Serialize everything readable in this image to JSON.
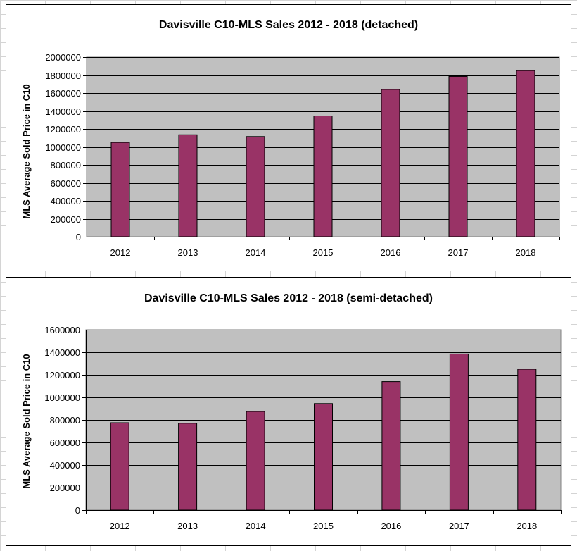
{
  "chart_data": [
    {
      "type": "bar",
      "title": "Davisville C10-MLS Sales 2012 - 2018 (detached)",
      "xlabel": "",
      "ylabel": "MLS Average Sold Price in C10",
      "categories": [
        "2012",
        "2013",
        "2014",
        "2015",
        "2016",
        "2017",
        "2018"
      ],
      "values": [
        1050000,
        1135000,
        1115000,
        1345000,
        1640000,
        1785000,
        1850000
      ],
      "ylim": [
        0,
        2000000
      ],
      "yticks": [
        "0",
        "200000",
        "400000",
        "600000",
        "800000",
        "1000000",
        "1200000",
        "1400000",
        "1600000",
        "1800000",
        "2000000"
      ],
      "grid": true,
      "bar_color": "#993366",
      "plot_background": "#c0c0c0"
    },
    {
      "type": "bar",
      "title": "Davisville C10-MLS Sales 2012 - 2018 (semi-detached)",
      "xlabel": "",
      "ylabel": "MLS Average Sold Price in C10",
      "categories": [
        "2012",
        "2013",
        "2014",
        "2015",
        "2016",
        "2017",
        "2018"
      ],
      "values": [
        775000,
        770000,
        875000,
        945000,
        1140000,
        1385000,
        1250000
      ],
      "ylim": [
        0,
        1600000
      ],
      "yticks": [
        "0",
        "200000",
        "400000",
        "600000",
        "800000",
        "1000000",
        "1200000",
        "1400000",
        "1600000"
      ],
      "grid": true,
      "bar_color": "#993366",
      "plot_background": "#c0c0c0"
    }
  ]
}
